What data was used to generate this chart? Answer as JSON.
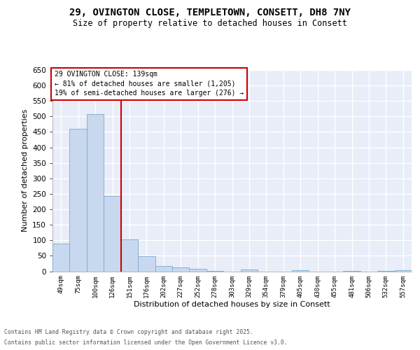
{
  "title_line1": "29, OVINGTON CLOSE, TEMPLETOWN, CONSETT, DH8 7NY",
  "title_line2": "Size of property relative to detached houses in Consett",
  "xlabel": "Distribution of detached houses by size in Consett",
  "ylabel": "Number of detached properties",
  "categories": [
    "49sqm",
    "75sqm",
    "100sqm",
    "126sqm",
    "151sqm",
    "176sqm",
    "202sqm",
    "227sqm",
    "252sqm",
    "278sqm",
    "303sqm",
    "329sqm",
    "354sqm",
    "379sqm",
    "405sqm",
    "430sqm",
    "455sqm",
    "481sqm",
    "506sqm",
    "532sqm",
    "557sqm"
  ],
  "values": [
    90,
    460,
    507,
    242,
    104,
    48,
    17,
    13,
    8,
    1,
    0,
    5,
    0,
    0,
    4,
    0,
    0,
    1,
    0,
    2,
    4
  ],
  "bar_color": "#c8d8ee",
  "bar_edge_color": "#7aaad0",
  "vline_x": 3.5,
  "vline_color": "#cc0000",
  "annotation_text": "29 OVINGTON CLOSE: 139sqm\n← 81% of detached houses are smaller (1,205)\n19% of semi-detached houses are larger (276) →",
  "ylim_max": 650,
  "yticks": [
    0,
    50,
    100,
    150,
    200,
    250,
    300,
    350,
    400,
    450,
    500,
    550,
    600,
    650
  ],
  "bg_color": "#e8edf8",
  "grid_color": "#ffffff",
  "footer_line1": "Contains HM Land Registry data © Crown copyright and database right 2025.",
  "footer_line2": "Contains public sector information licensed under the Open Government Licence v3.0."
}
